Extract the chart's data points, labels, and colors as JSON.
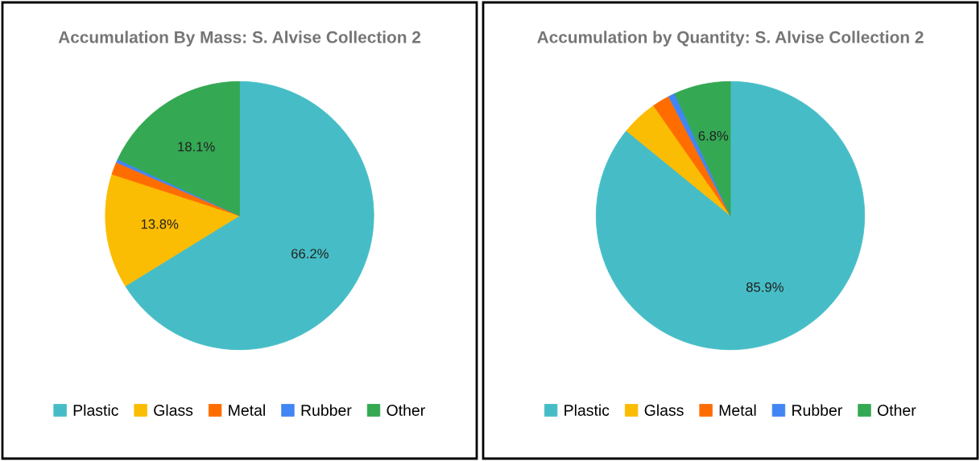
{
  "chart_data": [
    {
      "type": "pie",
      "title": "Accumulation By Mass: S. Alvise Collection 2",
      "categories": [
        "Plastic",
        "Glass",
        "Metal",
        "Rubber",
        "Other"
      ],
      "values": [
        66.2,
        13.8,
        1.5,
        0.4,
        18.1
      ],
      "value_labels": [
        "66.2%",
        "13.8%",
        null,
        null,
        "18.1%"
      ],
      "colors": [
        "#46bdc6",
        "#fbbc04",
        "#ff6d01",
        "#4285f4",
        "#34a853"
      ],
      "legend": "bottom"
    },
    {
      "type": "pie",
      "title": "Accumulation by Quantity: S. Alvise Collection 2",
      "categories": [
        "Plastic",
        "Glass",
        "Metal",
        "Rubber",
        "Other"
      ],
      "values": [
        85.9,
        4.4,
        2.1,
        0.8,
        6.8
      ],
      "value_labels": [
        "85.9%",
        null,
        null,
        null,
        "6.8%"
      ],
      "colors": [
        "#46bdc6",
        "#fbbc04",
        "#ff6d01",
        "#4285f4",
        "#34a853"
      ],
      "legend": "bottom"
    }
  ]
}
